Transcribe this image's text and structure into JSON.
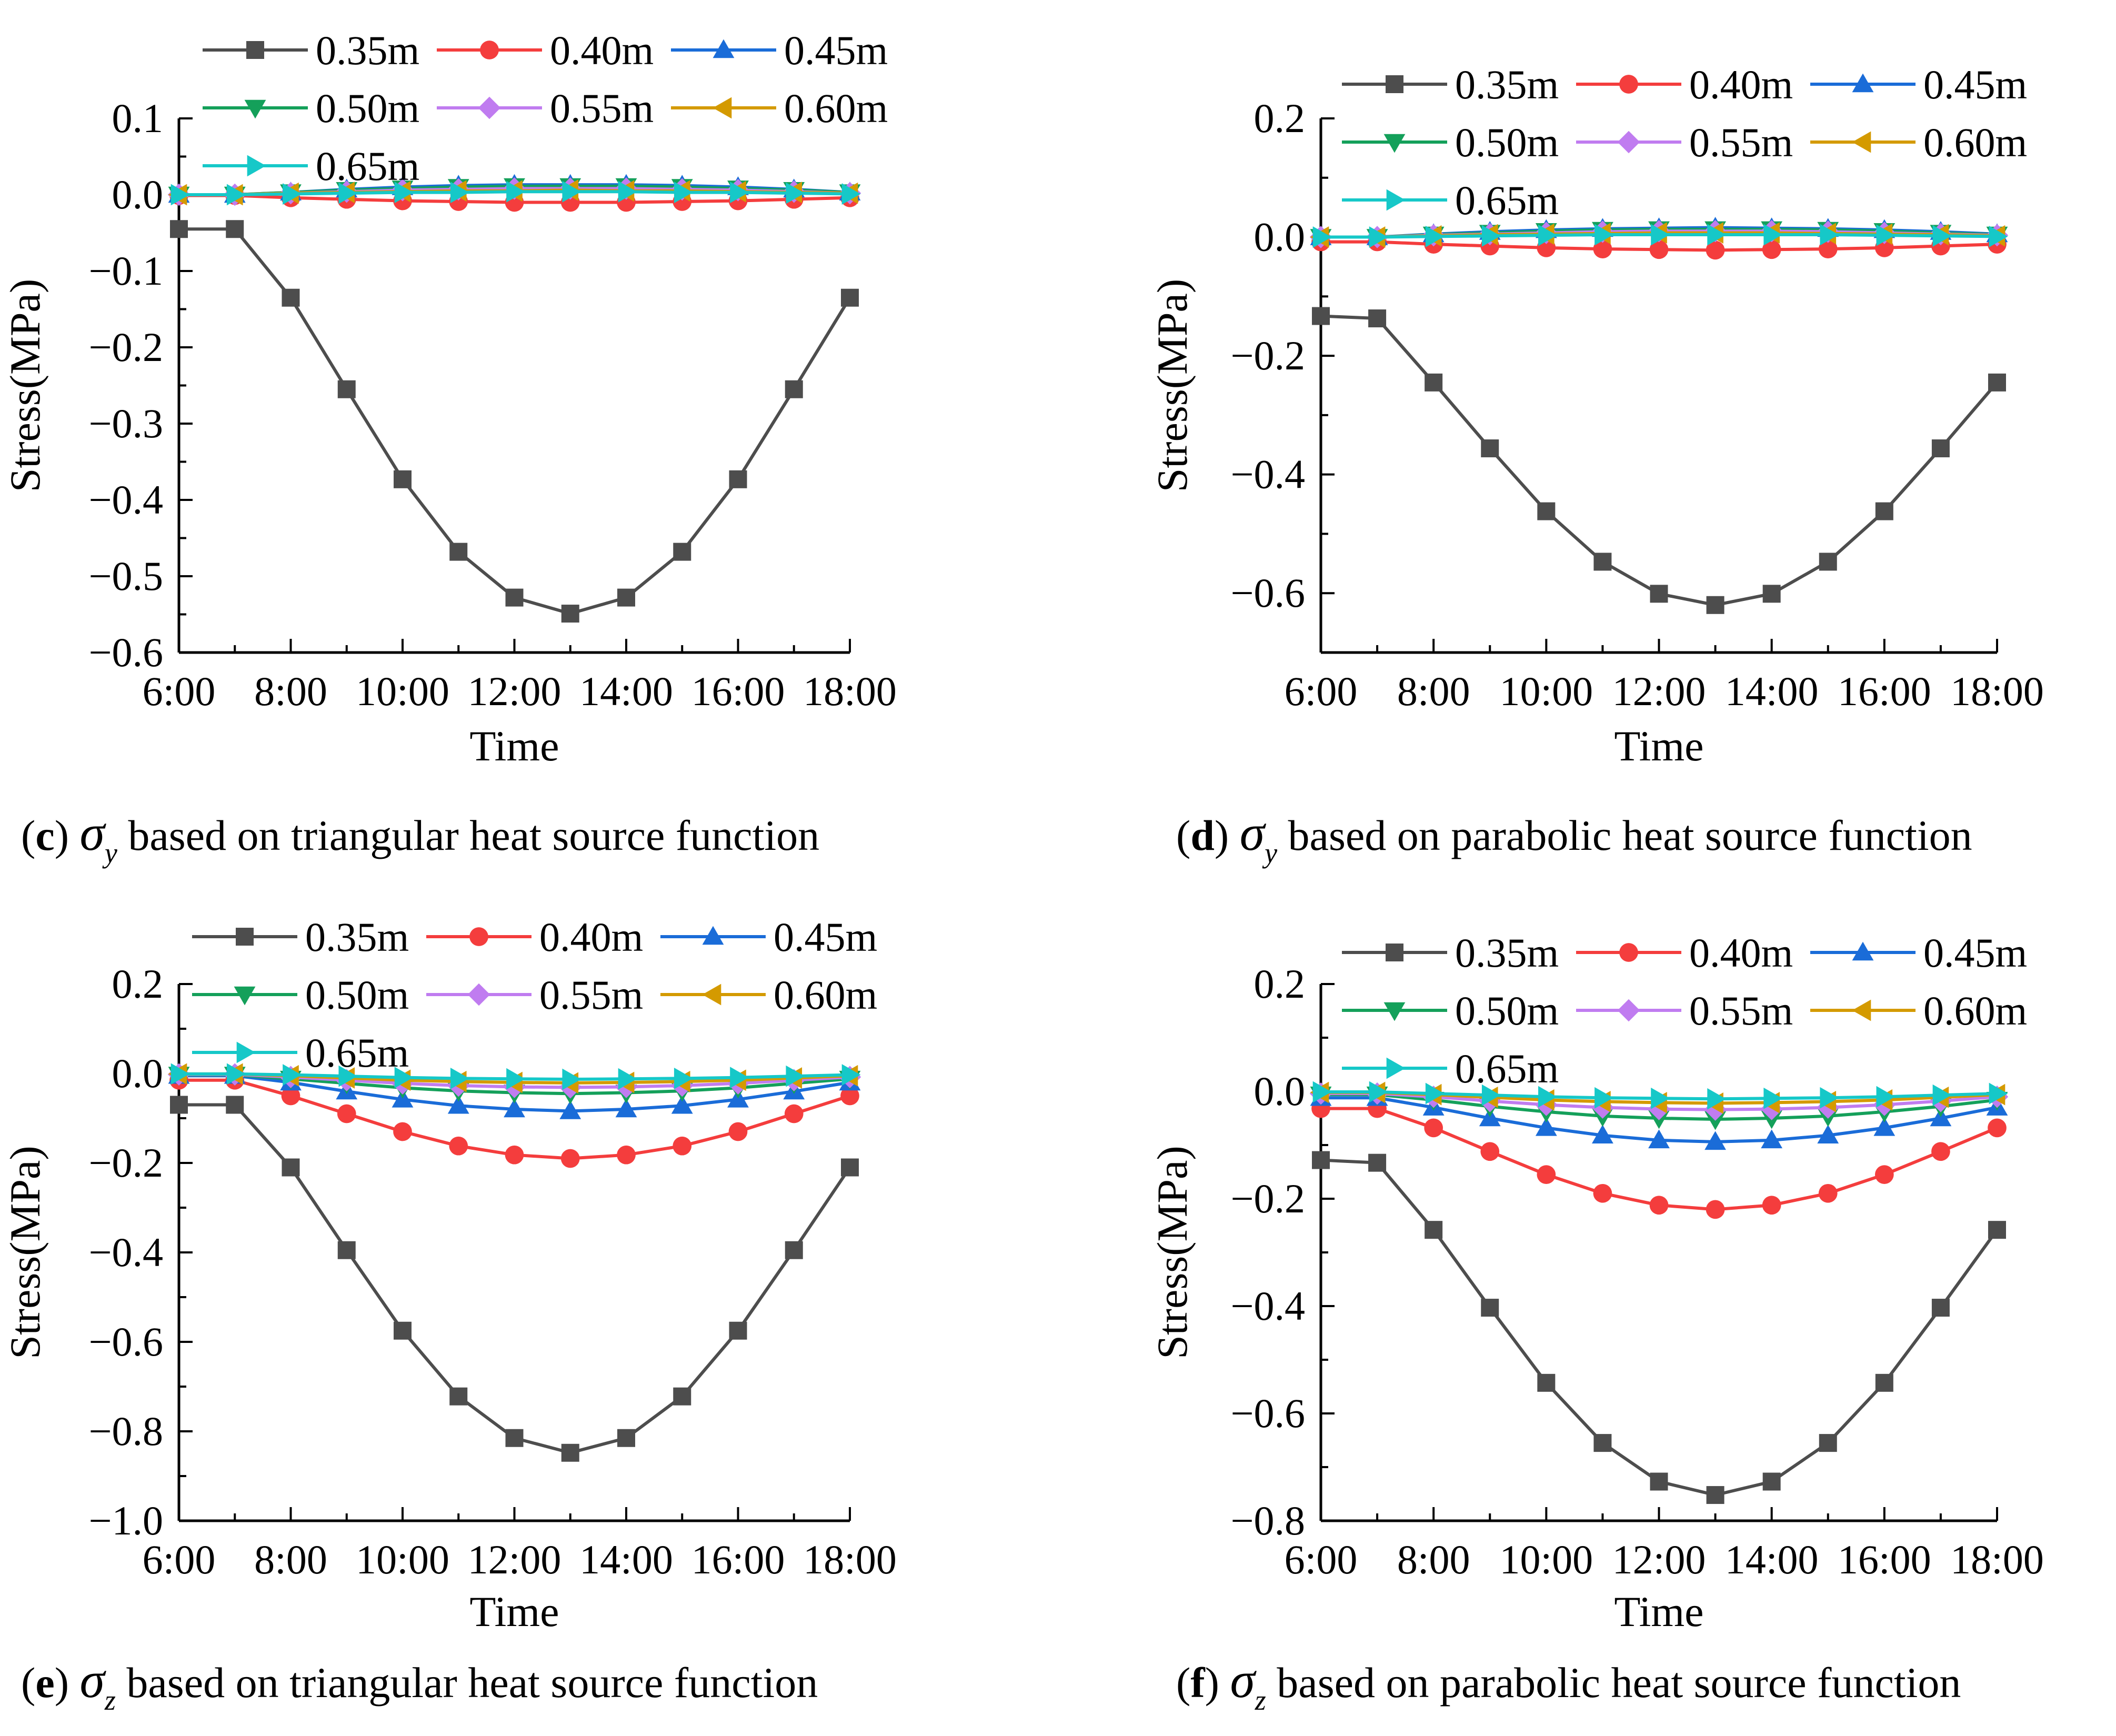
{
  "figure": {
    "series_names": [
      "0.35m",
      "0.40m",
      "0.45m",
      "0.50m",
      "0.55m",
      "0.60m",
      "0.65m"
    ],
    "series_colors": [
      "#4d4d4d",
      "#f43d3d",
      "#1a6cd8",
      "#14a05a",
      "#c07cf0",
      "#d49a00",
      "#16c8c8"
    ],
    "series_markers": [
      "square",
      "circle",
      "triangle-up",
      "triangle-down",
      "diamond",
      "triangle-left",
      "triangle-right"
    ]
  },
  "chart_data": [
    {
      "type": "line",
      "panel_letter": "c",
      "panel_symbol": "σ",
      "panel_subscript": "y",
      "panel_text": "based on triangular heat source function",
      "xlabel": "Time",
      "ylabel": "Stress(MPa)",
      "xticks": [
        "6:00",
        "8:00",
        "10:00",
        "12:00",
        "14:00",
        "16:00",
        "18:00"
      ],
      "x": [
        6,
        7,
        8,
        9,
        10,
        11,
        12,
        13,
        14,
        15,
        16,
        17,
        18
      ],
      "xlim": [
        6,
        18
      ],
      "ylim": [
        -0.6,
        0.1
      ],
      "yticks": [
        "0.1",
        "0.0",
        "−0.1",
        "−0.2",
        "−0.3",
        "−0.4",
        "−0.5",
        "−0.6"
      ],
      "ytick_values": [
        0.1,
        0.0,
        -0.1,
        -0.2,
        -0.3,
        -0.4,
        -0.5,
        -0.6
      ],
      "series": [
        {
          "name": "0.35m",
          "values": [
            -0.045,
            -0.045,
            -0.135,
            -0.255,
            -0.373,
            -0.468,
            -0.528,
            -0.549,
            -0.528,
            -0.468,
            -0.373,
            -0.255,
            -0.135
          ]
        },
        {
          "name": "0.40m",
          "values": [
            -0.001,
            -0.001,
            -0.004,
            -0.006,
            -0.008,
            -0.009,
            -0.01,
            -0.01,
            -0.01,
            -0.009,
            -0.008,
            -0.006,
            -0.004
          ]
        },
        {
          "name": "0.45m",
          "values": [
            0.0,
            0.0,
            0.003,
            0.007,
            0.01,
            0.012,
            0.013,
            0.013,
            0.013,
            0.012,
            0.01,
            0.007,
            0.003
          ]
        },
        {
          "name": "0.50m",
          "values": [
            0.0,
            0.0,
            0.003,
            0.006,
            0.008,
            0.01,
            0.011,
            0.011,
            0.011,
            0.01,
            0.008,
            0.006,
            0.003
          ]
        },
        {
          "name": "0.55m",
          "values": [
            0.0,
            0.0,
            0.002,
            0.004,
            0.006,
            0.007,
            0.008,
            0.008,
            0.008,
            0.007,
            0.006,
            0.004,
            0.002
          ]
        },
        {
          "name": "0.60m",
          "values": [
            0.0,
            0.0,
            0.002,
            0.003,
            0.004,
            0.005,
            0.005,
            0.006,
            0.005,
            0.005,
            0.004,
            0.003,
            0.002
          ]
        },
        {
          "name": "0.65m",
          "values": [
            0.0,
            0.0,
            0.001,
            0.002,
            0.003,
            0.003,
            0.004,
            0.004,
            0.004,
            0.003,
            0.003,
            0.002,
            0.001
          ]
        }
      ]
    },
    {
      "type": "line",
      "panel_letter": "d",
      "panel_symbol": "σ",
      "panel_subscript": "y",
      "panel_text": "based on parabolic heat source function",
      "xlabel": "Time",
      "ylabel": "Stress(MPa)",
      "xticks": [
        "6:00",
        "8:00",
        "10:00",
        "12:00",
        "14:00",
        "16:00",
        "18:00"
      ],
      "x": [
        6,
        7,
        8,
        9,
        10,
        11,
        12,
        13,
        14,
        15,
        16,
        17,
        18
      ],
      "xlim": [
        6,
        18
      ],
      "ylim": [
        -0.7,
        0.2
      ],
      "yticks": [
        "0.2",
        "0.0",
        "−0.2",
        "−0.4",
        "−0.6"
      ],
      "ytick_values": [
        0.2,
        0.0,
        -0.2,
        -0.4,
        -0.6
      ],
      "series": [
        {
          "name": "0.35m",
          "values": [
            -0.133,
            -0.137,
            -0.245,
            -0.356,
            -0.462,
            -0.547,
            -0.601,
            -0.62,
            -0.601,
            -0.547,
            -0.462,
            -0.356,
            -0.245
          ]
        },
        {
          "name": "0.40m",
          "values": [
            -0.008,
            -0.008,
            -0.012,
            -0.015,
            -0.018,
            -0.02,
            -0.021,
            -0.022,
            -0.021,
            -0.02,
            -0.018,
            -0.015,
            -0.012
          ]
        },
        {
          "name": "0.45m",
          "values": [
            0.0,
            0.0,
            0.005,
            0.009,
            0.012,
            0.014,
            0.015,
            0.016,
            0.015,
            0.014,
            0.012,
            0.009,
            0.005
          ]
        },
        {
          "name": "0.50m",
          "values": [
            0.0,
            0.0,
            0.004,
            0.007,
            0.01,
            0.012,
            0.013,
            0.013,
            0.013,
            0.012,
            0.01,
            0.007,
            0.004
          ]
        },
        {
          "name": "0.55m",
          "values": [
            0.0,
            0.0,
            0.003,
            0.005,
            0.007,
            0.009,
            0.01,
            0.01,
            0.01,
            0.009,
            0.007,
            0.005,
            0.003
          ]
        },
        {
          "name": "0.60m",
          "values": [
            0.0,
            0.0,
            0.002,
            0.004,
            0.005,
            0.006,
            0.007,
            0.007,
            0.007,
            0.006,
            0.005,
            0.004,
            0.002
          ]
        },
        {
          "name": "0.65m",
          "values": [
            0.0,
            0.0,
            0.001,
            0.002,
            0.003,
            0.004,
            0.004,
            0.004,
            0.004,
            0.004,
            0.003,
            0.002,
            0.001
          ]
        }
      ]
    },
    {
      "type": "line",
      "panel_letter": "e",
      "panel_symbol": "σ",
      "panel_subscript": "z",
      "panel_text": "based on triangular heat source function",
      "xlabel": "Time",
      "ylabel": "Stress(MPa)",
      "xticks": [
        "6:00",
        "8:00",
        "10:00",
        "12:00",
        "14:00",
        "16:00",
        "18:00"
      ],
      "x": [
        6,
        7,
        8,
        9,
        10,
        11,
        12,
        13,
        14,
        15,
        16,
        17,
        18
      ],
      "xlim": [
        6,
        18
      ],
      "ylim": [
        -1.0,
        0.2
      ],
      "yticks": [
        "0.2",
        "0.0",
        "−0.2",
        "−0.4",
        "−0.6",
        "−0.8",
        "−1.0"
      ],
      "ytick_values": [
        0.2,
        0.0,
        -0.2,
        -0.4,
        -0.6,
        -0.8,
        -1.0
      ],
      "series": [
        {
          "name": "0.35m",
          "values": [
            -0.07,
            -0.07,
            -0.21,
            -0.395,
            -0.575,
            -0.722,
            -0.815,
            -0.848,
            -0.815,
            -0.722,
            -0.575,
            -0.395,
            -0.21
          ]
        },
        {
          "name": "0.40m",
          "values": [
            -0.015,
            -0.015,
            -0.05,
            -0.09,
            -0.13,
            -0.162,
            -0.182,
            -0.19,
            -0.182,
            -0.162,
            -0.13,
            -0.09,
            -0.05
          ]
        },
        {
          "name": "0.45m",
          "values": [
            -0.005,
            -0.005,
            -0.02,
            -0.04,
            -0.058,
            -0.072,
            -0.08,
            -0.084,
            -0.08,
            -0.072,
            -0.058,
            -0.04,
            -0.02
          ]
        },
        {
          "name": "0.50m",
          "values": [
            -0.003,
            -0.003,
            -0.012,
            -0.022,
            -0.032,
            -0.039,
            -0.043,
            -0.045,
            -0.043,
            -0.039,
            -0.032,
            -0.022,
            -0.012
          ]
        },
        {
          "name": "0.55m",
          "values": [
            -0.002,
            -0.002,
            -0.008,
            -0.015,
            -0.022,
            -0.027,
            -0.03,
            -0.031,
            -0.03,
            -0.027,
            -0.022,
            -0.015,
            -0.008
          ]
        },
        {
          "name": "0.60m",
          "values": [
            -0.001,
            -0.001,
            -0.005,
            -0.01,
            -0.015,
            -0.018,
            -0.02,
            -0.021,
            -0.02,
            -0.018,
            -0.015,
            -0.01,
            -0.005
          ]
        },
        {
          "name": "0.65m",
          "values": [
            -0.001,
            -0.001,
            -0.003,
            -0.006,
            -0.009,
            -0.011,
            -0.012,
            -0.013,
            -0.012,
            -0.011,
            -0.009,
            -0.006,
            -0.003
          ]
        }
      ]
    },
    {
      "type": "line",
      "panel_letter": "f",
      "panel_symbol": "σ",
      "panel_subscript": "z",
      "panel_text": "based on parabolic heat source function",
      "xlabel": "Time",
      "ylabel": "Stress(MPa)",
      "xticks": [
        "6:00",
        "8:00",
        "10:00",
        "12:00",
        "14:00",
        "16:00",
        "18:00"
      ],
      "x": [
        6,
        7,
        8,
        9,
        10,
        11,
        12,
        13,
        14,
        15,
        16,
        17,
        18
      ],
      "xlim": [
        6,
        18
      ],
      "ylim": [
        -0.8,
        0.2
      ],
      "yticks": [
        "0.2",
        "0.0",
        "−0.2",
        "−0.4",
        "−0.6",
        "−0.8"
      ],
      "ytick_values": [
        0.2,
        0.0,
        -0.2,
        -0.4,
        -0.6,
        -0.8
      ],
      "series": [
        {
          "name": "0.35m",
          "values": [
            -0.128,
            -0.133,
            -0.258,
            -0.403,
            -0.543,
            -0.655,
            -0.727,
            -0.752,
            -0.727,
            -0.655,
            -0.543,
            -0.403,
            -0.258
          ]
        },
        {
          "name": "0.40m",
          "values": [
            -0.032,
            -0.032,
            -0.068,
            -0.112,
            -0.155,
            -0.19,
            -0.212,
            -0.22,
            -0.212,
            -0.19,
            -0.155,
            -0.112,
            -0.068
          ]
        },
        {
          "name": "0.45m",
          "values": [
            -0.012,
            -0.012,
            -0.03,
            -0.05,
            -0.068,
            -0.082,
            -0.091,
            -0.094,
            -0.091,
            -0.082,
            -0.068,
            -0.05,
            -0.03
          ]
        },
        {
          "name": "0.50m",
          "values": [
            -0.006,
            -0.006,
            -0.016,
            -0.028,
            -0.038,
            -0.046,
            -0.05,
            -0.052,
            -0.05,
            -0.046,
            -0.038,
            -0.028,
            -0.016
          ]
        },
        {
          "name": "0.55m",
          "values": [
            -0.004,
            -0.004,
            -0.01,
            -0.018,
            -0.025,
            -0.03,
            -0.033,
            -0.034,
            -0.033,
            -0.03,
            -0.025,
            -0.018,
            -0.01
          ]
        },
        {
          "name": "0.60m",
          "values": [
            -0.002,
            -0.002,
            -0.006,
            -0.011,
            -0.016,
            -0.019,
            -0.021,
            -0.022,
            -0.021,
            -0.019,
            -0.016,
            -0.011,
            -0.006
          ]
        },
        {
          "name": "0.65m",
          "values": [
            -0.001,
            -0.001,
            -0.004,
            -0.007,
            -0.01,
            -0.012,
            -0.013,
            -0.014,
            -0.013,
            -0.012,
            -0.01,
            -0.007,
            -0.004
          ]
        }
      ]
    }
  ]
}
